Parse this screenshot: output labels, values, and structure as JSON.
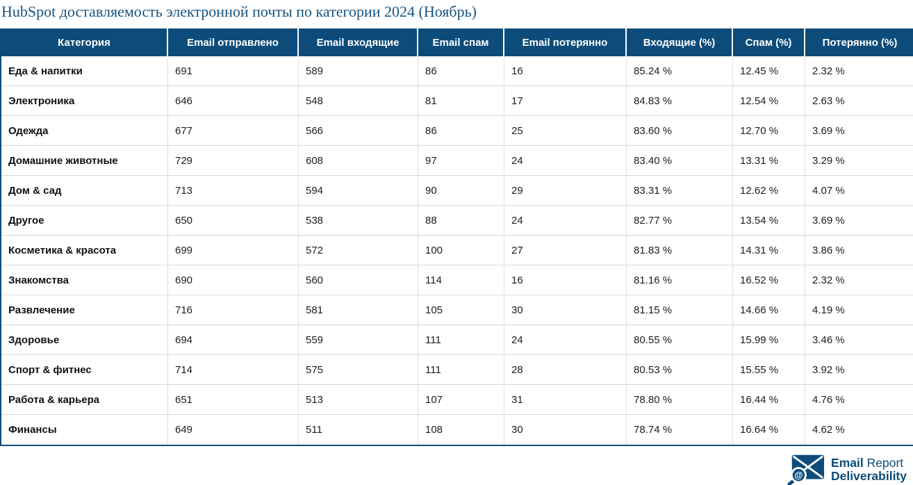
{
  "accent_color": "#0d4c7a",
  "title_color": "#1a5480",
  "title": "HubSpot доставляемость электронной почты по категории 2024 (Ноябрь)",
  "table": {
    "columns": [
      "Категория",
      "Email отправлено",
      "Email входящие",
      "Email спам",
      "Email потерянно",
      "Входящие (%)",
      "Спам (%)",
      "Потерянно (%)"
    ],
    "rows": [
      [
        "Еда & напитки",
        "691",
        "589",
        "86",
        "16",
        "85.24 %",
        "12.45 %",
        "2.32 %"
      ],
      [
        "Электроника",
        "646",
        "548",
        "81",
        "17",
        "84.83 %",
        "12.54 %",
        "2.63 %"
      ],
      [
        "Одежда",
        "677",
        "566",
        "86",
        "25",
        "83.60 %",
        "12.70 %",
        "3.69 %"
      ],
      [
        "Домашние животные",
        "729",
        "608",
        "97",
        "24",
        "83.40 %",
        "13.31 %",
        "3.29 %"
      ],
      [
        "Дом & сад",
        "713",
        "594",
        "90",
        "29",
        "83.31 %",
        "12.62 %",
        "4.07 %"
      ],
      [
        "Другое",
        "650",
        "538",
        "88",
        "24",
        "82.77 %",
        "13.54 %",
        "3.69 %"
      ],
      [
        "Косметика & красота",
        "699",
        "572",
        "100",
        "27",
        "81.83 %",
        "14.31 %",
        "3.86 %"
      ],
      [
        "Знакомства",
        "690",
        "560",
        "114",
        "16",
        "81.16 %",
        "16.52 %",
        "2.32 %"
      ],
      [
        "Развлечение",
        "716",
        "581",
        "105",
        "30",
        "81.15 %",
        "14.66 %",
        "4.19 %"
      ],
      [
        "Здоровье",
        "694",
        "559",
        "111",
        "24",
        "80.55 %",
        "15.99 %",
        "3.46 %"
      ],
      [
        "Спорт & фитнес",
        "714",
        "575",
        "111",
        "28",
        "80.53 %",
        "15.55 %",
        "3.92 %"
      ],
      [
        "Работа & карьера",
        "651",
        "513",
        "107",
        "31",
        "78.80 %",
        "16.44 %",
        "4.76 %"
      ],
      [
        "Финансы",
        "649",
        "511",
        "108",
        "30",
        "78.74 %",
        "16.64 %",
        "4.62 %"
      ]
    ]
  },
  "logo": {
    "line1_bold": "Email",
    "line1_regular": "Report",
    "line2_bold": "Deliverability",
    "at_symbol": "@"
  },
  "chart_data": {
    "type": "table",
    "title": "HubSpot доставляемость электронной почты по категории 2024 (Ноябрь)",
    "columns": [
      "Категория",
      "Email отправлено",
      "Email входящие",
      "Email спам",
      "Email потерянно",
      "Входящие (%)",
      "Спам (%)",
      "Потерянно (%)"
    ],
    "records": [
      {
        "category": "Еда & напитки",
        "sent": 691,
        "inbox": 589,
        "spam": 86,
        "lost": 16,
        "inbox_pct": 85.24,
        "spam_pct": 12.45,
        "lost_pct": 2.32
      },
      {
        "category": "Электроника",
        "sent": 646,
        "inbox": 548,
        "spam": 81,
        "lost": 17,
        "inbox_pct": 84.83,
        "spam_pct": 12.54,
        "lost_pct": 2.63
      },
      {
        "category": "Одежда",
        "sent": 677,
        "inbox": 566,
        "spam": 86,
        "lost": 25,
        "inbox_pct": 83.6,
        "spam_pct": 12.7,
        "lost_pct": 3.69
      },
      {
        "category": "Домашние животные",
        "sent": 729,
        "inbox": 608,
        "spam": 97,
        "lost": 24,
        "inbox_pct": 83.4,
        "spam_pct": 13.31,
        "lost_pct": 3.29
      },
      {
        "category": "Дом & сад",
        "sent": 713,
        "inbox": 594,
        "spam": 90,
        "lost": 29,
        "inbox_pct": 83.31,
        "spam_pct": 12.62,
        "lost_pct": 4.07
      },
      {
        "category": "Другое",
        "sent": 650,
        "inbox": 538,
        "spam": 88,
        "lost": 24,
        "inbox_pct": 82.77,
        "spam_pct": 13.54,
        "lost_pct": 3.69
      },
      {
        "category": "Косметика & красота",
        "sent": 699,
        "inbox": 572,
        "spam": 100,
        "lost": 27,
        "inbox_pct": 81.83,
        "spam_pct": 14.31,
        "lost_pct": 3.86
      },
      {
        "category": "Знакомства",
        "sent": 690,
        "inbox": 560,
        "spam": 114,
        "lost": 16,
        "inbox_pct": 81.16,
        "spam_pct": 16.52,
        "lost_pct": 2.32
      },
      {
        "category": "Развлечение",
        "sent": 716,
        "inbox": 581,
        "spam": 105,
        "lost": 30,
        "inbox_pct": 81.15,
        "spam_pct": 14.66,
        "lost_pct": 4.19
      },
      {
        "category": "Здоровье",
        "sent": 694,
        "inbox": 559,
        "spam": 111,
        "lost": 24,
        "inbox_pct": 80.55,
        "spam_pct": 15.99,
        "lost_pct": 3.46
      },
      {
        "category": "Спорт & фитнес",
        "sent": 714,
        "inbox": 575,
        "spam": 111,
        "lost": 28,
        "inbox_pct": 80.53,
        "spam_pct": 15.55,
        "lost_pct": 3.92
      },
      {
        "category": "Работа & карьера",
        "sent": 651,
        "inbox": 513,
        "spam": 107,
        "lost": 31,
        "inbox_pct": 78.8,
        "spam_pct": 16.44,
        "lost_pct": 4.76
      },
      {
        "category": "Финансы",
        "sent": 649,
        "inbox": 511,
        "spam": 108,
        "lost": 30,
        "inbox_pct": 78.74,
        "spam_pct": 16.64,
        "lost_pct": 4.62
      }
    ]
  }
}
